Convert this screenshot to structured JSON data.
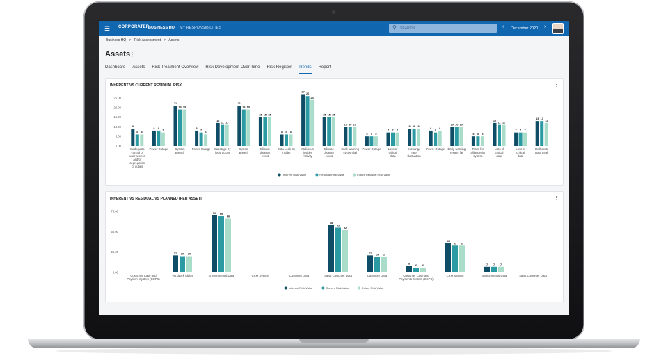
{
  "topbar": {
    "menu_icon": "hamburger-icon",
    "logo": "CORPORATER",
    "nav_home": "BUSINESS HQ",
    "nav_resp": "MY RESPONSIBILITIES",
    "search_placeholder": "SEARCH",
    "period": "December 2020",
    "prev_icon": "chevron-left-icon",
    "next_icon": "chevron-right-icon",
    "accent": "#1166b0"
  },
  "breadcrumb": [
    "Business HQ",
    ">",
    "Risk Assessment",
    ">",
    "Assets"
  ],
  "page": {
    "title": "Assets",
    "tabs": [
      {
        "label": "Dashboard"
      },
      {
        "label": "Assets"
      },
      {
        "label": "Risk Treatment Overview"
      },
      {
        "label": "Risk Development Over Time"
      },
      {
        "label": "Risk Register"
      },
      {
        "label": "Trends",
        "active": true
      },
      {
        "label": "Report"
      }
    ]
  },
  "colors": {
    "dark": "#0f4d66",
    "mid": "#2c9aa3",
    "light": "#a9ddc9"
  },
  "chart_data": [
    {
      "type": "bar",
      "title": "INHERENT VS CURRENT RESIDUAL RISK",
      "ylim": [
        0,
        25
      ],
      "yticks": [
        "0.00",
        "5.00",
        "10.00",
        "15.00",
        "20.00",
        "25.00"
      ],
      "categories": [
        "Inadequate control of user access and/or segregation of duties",
        "Power Outage",
        "System Breach",
        "Power Outage",
        "Sabotage by local actors",
        "System Breach",
        "Climate disaster event",
        "Data Leak By Insider",
        "Malicious insider Activity",
        "Climate disaster event",
        "Early-warning system fail",
        "Power Outage",
        "Loss of critical data",
        "Exchange rate fluctuation",
        "Power Outage",
        "Early-warning system fail",
        "Risks for alligogevity system",
        "Loss of critical data",
        "Loss of critical data",
        "Deliberate Data Leak"
      ],
      "series": [
        {
          "name": "Inherent Risk Value",
          "values": [
            9,
            8,
            21,
            8,
            12,
            21,
            15,
            6,
            27,
            15,
            10,
            5,
            7,
            9,
            8,
            10,
            5,
            12,
            7,
            13
          ]
        },
        {
          "name": "Residual Risk Value",
          "values": [
            6,
            8,
            19,
            7,
            11,
            19,
            15,
            6,
            26,
            15,
            10,
            5,
            7,
            9,
            7,
            10,
            5,
            11,
            7,
            13
          ]
        },
        {
          "name": "Future Residual Risk Value",
          "values": [
            6,
            7,
            19,
            6,
            11,
            19,
            15,
            6,
            24,
            15,
            10,
            5,
            7,
            9,
            8,
            10,
            5,
            11,
            7,
            12
          ]
        }
      ],
      "legend": "bottom"
    },
    {
      "type": "bar",
      "title": "INHERENT VS RESIDUAL VS PLANNED (PER ASSET)",
      "ylim": [
        0,
        75
      ],
      "yticks": [
        "0.00",
        "25.00",
        "50.00",
        "75.00"
      ],
      "categories": [
        "Customer Case and Payment System (CCPS)",
        "Windpark Alpha",
        "Environmental Data",
        "CRM System",
        "Customer Data",
        "SaaS Customer Data",
        "Customer Data",
        "Customer Case and Payments System (CCPS)",
        "CRM System",
        "Environmental Data",
        "SaaS Customer Data"
      ],
      "series": [
        {
          "name": "Inherent Risk Value",
          "values": [
            0,
            21,
            70,
            0,
            0,
            58,
            21,
            8,
            36,
            7,
            0
          ]
        },
        {
          "name": "Current Risk Value",
          "values": [
            0,
            20,
            69,
            0,
            0,
            55,
            19,
            6,
            33,
            7,
            0
          ]
        },
        {
          "name": "Future Risk Value",
          "values": [
            0,
            20,
            66,
            0,
            0,
            52,
            19,
            6,
            33,
            7,
            0
          ]
        }
      ],
      "legend": "bottom"
    }
  ]
}
